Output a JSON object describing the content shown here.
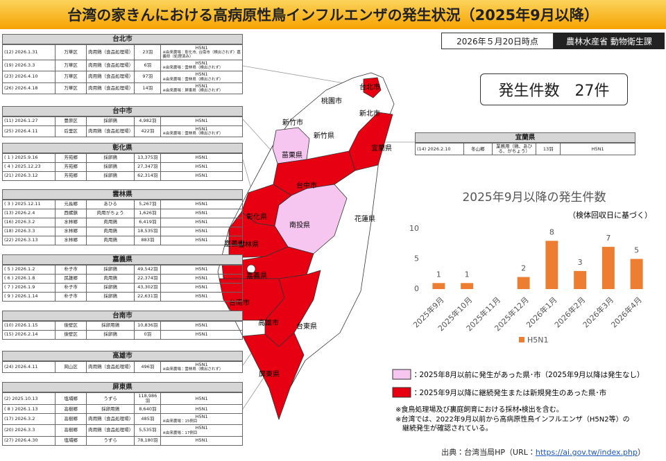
{
  "header": {
    "title": "台湾の家きんにおける高病原性鳥インフルエンザの発生状況（2025年9月以降）",
    "as_of": "2026年５月20日時点",
    "agency": "農林水産省 動物衛生課"
  },
  "summary": "発生件数　27件",
  "tables": [
    {
      "name": "台北市",
      "rows": [
        {
          "case": "(12) 2026.1.31",
          "district": "万華区",
          "type": "肉用鶏（食品処理場）",
          "count": "23羽",
          "strain": "H5N1",
          "note": "※由来農場：彰化市, 台南市（検出されず）嘉義県（処理済み）"
        },
        {
          "case": "(19) 2026.3.3",
          "district": "万華区",
          "type": "肉用鶏（食品処理場）",
          "count": "6羽",
          "strain": "H5N1",
          "note": "※由来農場：雲林県（検出されず）"
        },
        {
          "case": "(23) 2026.4.10",
          "district": "万華区",
          "type": "肉用鶏（食品処理場）",
          "count": "97羽",
          "strain": "H5N1",
          "note": "※由来農場：雲林県（検出されず）"
        },
        {
          "case": "(26) 2026.4.18",
          "district": "万華区",
          "type": "肉用鶏（食品処理場）",
          "count": "14羽",
          "strain": "H5N1",
          "note": "※由来農場：屏東県（検出されず）"
        }
      ]
    },
    {
      "name": "台中市",
      "rows": [
        {
          "case": "(11) 2026.1.27",
          "district": "豊原区",
          "type": "採卵鶏",
          "count": "4,982羽",
          "strain": "H5N1"
        },
        {
          "case": "(25) 2026.4.11",
          "district": "后里区",
          "type": "肉用鶏（食品処理場）",
          "count": "422羽",
          "strain": "H5N1",
          "note": "※由来農場：雲林県（検出されず）"
        }
      ]
    },
    {
      "name": "彰化県",
      "rows": [
        {
          "case": "( 1 ) 2025.9.16",
          "district": "芳苑郷",
          "type": "採卵鶏",
          "count": "13,375羽",
          "strain": "H5N1"
        },
        {
          "case": "( 4 ) 2025.12.23",
          "district": "芳苑郷",
          "type": "採卵鶏",
          "count": "27,347羽",
          "strain": "H5N1"
        },
        {
          "case": "(21) 2026.3.12",
          "district": "芳苑郷",
          "type": "採卵鶏",
          "count": "62,314羽",
          "strain": "H5N1"
        }
      ]
    },
    {
      "name": "雲林県",
      "rows": [
        {
          "case": "( 3 ) 2025.12.11",
          "district": "元長郷",
          "type": "あひる",
          "count": "5,267羽",
          "strain": "H5N1"
        },
        {
          "case": "(13) 2026.2.4",
          "district": "西螺鎮",
          "type": "肉用がちょう",
          "count": "1,626羽",
          "strain": "H5N1"
        },
        {
          "case": "(16) 2026.3.2",
          "district": "水林郷",
          "type": "肉用鶏",
          "count": "6,419羽",
          "strain": "H5N1"
        },
        {
          "case": "(18) 2026.3.3",
          "district": "水林郷",
          "type": "肉用鶏",
          "count": "18,535羽",
          "strain": "H5N1"
        },
        {
          "case": "(22) 2026.3.13",
          "district": "水林郷",
          "type": "肉用鶏",
          "count": "883羽",
          "strain": "H5N1"
        }
      ]
    },
    {
      "name": "嘉義県",
      "rows": [
        {
          "case": "( 5 ) 2026.1.2",
          "district": "朴子市",
          "type": "採卵鶏",
          "count": "49,542羽",
          "strain": "H5N1"
        },
        {
          "case": "( 6 ) 2026.1.8",
          "district": "民雄郷",
          "type": "肉用鶏",
          "count": "22,374羽",
          "strain": "H5N1"
        },
        {
          "case": "( 7 ) 2026.1.9",
          "district": "朴子市",
          "type": "採卵鶏",
          "count": "43,302羽",
          "strain": "H5N1"
        },
        {
          "case": "( 9 ) 2026.1.14",
          "district": "朴子市",
          "type": "採卵鶏",
          "count": "22,631羽",
          "strain": "H5N1"
        }
      ]
    },
    {
      "name": "台南市",
      "rows": [
        {
          "case": "(10) 2026.1.15",
          "district": "後壁区",
          "type": "採卵用鶏",
          "count": "10,836羽",
          "strain": "H5N1"
        },
        {
          "case": "(15) 2026.2.14",
          "district": "後壁区",
          "type": "採卵鶏",
          "count": "0羽",
          "strain": "H5N1"
        }
      ]
    },
    {
      "name": "高雄市",
      "rows": [
        {
          "case": "(24) 2026.4.11",
          "district": "岡山区",
          "type": "肉用鶏（食品処理場）",
          "count": "496羽",
          "strain": "H5N1",
          "note": "※由来農場：雲林県（検出されず）"
        }
      ]
    },
    {
      "name": "屏東県",
      "rows": [
        {
          "case": "(2) 2025.10.13",
          "district": "塩埔郷",
          "type": "うずら",
          "count": "118,986羽",
          "strain": "H5N1"
        },
        {
          "case": "( 8 ) 2026.1.13",
          "district": "高樹郷",
          "type": "採卵用鶏",
          "count": "8,640羽",
          "strain": "H5N1"
        },
        {
          "case": "(17) 2026.3.2",
          "district": "高樹郷",
          "type": "肉用鶏（食品処理場）",
          "count": "485羽",
          "strain": "H5N1",
          "note": "※由来農場：15例目"
        },
        {
          "case": "(20) 2026.3.3",
          "district": "高樹郷",
          "type": "肉用鶏（食品処理場）",
          "count": "5,535羽",
          "strain": "H5N1",
          "note": "※由来農場：17例目"
        },
        {
          "case": "(27) 2026.4.30",
          "district": "塩埔郷",
          "type": "うずら",
          "count": "78,180羽",
          "strain": "H5N1"
        }
      ]
    },
    {
      "name": "宜蘭県",
      "rows": [
        {
          "case": "(14) 2026.2.10",
          "district": "冬山郷",
          "type": "業務用（鶏、あひる、がちょう）",
          "count": "13羽",
          "strain": "H5N1"
        }
      ]
    }
  ],
  "map": {
    "labels": [
      "台北市",
      "桃園市",
      "新北市",
      "新竹市",
      "新竹県",
      "苗栗県",
      "宜蘭県",
      "台中市",
      "彰化県",
      "南投県",
      "花蓮県",
      "雲林県",
      "嘉義市",
      "嘉義県",
      "台南市",
      "高雄市",
      "台東県",
      "屏東県"
    ],
    "legend": [
      "：2025年8月以前に発生があった県･市（2025年9月以降は発生なし）",
      "：2025年9月以降に継続発生または新規発生のあった県･市"
    ]
  },
  "notes": [
    "※食鳥処理場及び裏庭飼育における採材・検出を含む。",
    "※台湾では、2022年9月以前から高病原性鳥インフルエンザ（H5N2等）の",
    "　継続発生が確認されている。"
  ],
  "source": {
    "prefix": "出典：台湾当局HP（URL：",
    "url": "https://ai.gov.tw/index.php",
    "suffix": "）"
  },
  "chart_data": {
    "type": "bar",
    "title": "2025年9月以降の発生件数",
    "subtitle": "（検体回収日に基づく）",
    "categories": [
      "2025年9月",
      "2025年10月",
      "2025年11月",
      "2025年12月",
      "2026年1月",
      "2026年2月",
      "2026年3月",
      "2026年4月"
    ],
    "series": [
      {
        "name": "H5N1",
        "color": "#ed7d31",
        "values": [
          1,
          1,
          0,
          2,
          8,
          3,
          7,
          5
        ]
      }
    ],
    "ylim": [
      0,
      10
    ],
    "yticks": [
      0,
      5,
      10
    ],
    "grid": false,
    "legend": "bottom"
  }
}
